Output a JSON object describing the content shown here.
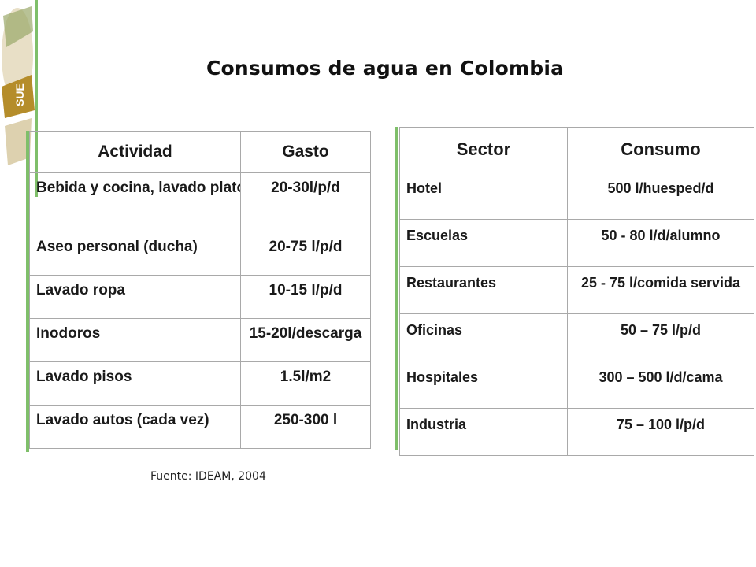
{
  "title": "Consumos de agua en Colombia",
  "logo": {
    "text": "SUE",
    "icon": "institution-logo"
  },
  "table_activity": {
    "headers": [
      "Actividad",
      "Gasto"
    ],
    "rows": [
      [
        "Bebida y cocina, lavado platos",
        "20-30l/p/d"
      ],
      [
        "Aseo personal (ducha)",
        "20-75 l/p/d"
      ],
      [
        "Lavado ropa",
        "10-15 l/p/d"
      ],
      [
        "Inodoros",
        "15-20l/descarga"
      ],
      [
        "Lavado pisos",
        "1.5l/m2"
      ],
      [
        "Lavado autos (cada vez)",
        "250-300 l"
      ]
    ]
  },
  "table_sector": {
    "headers": [
      "Sector",
      "Consumo"
    ],
    "rows": [
      [
        "Hotel",
        "500 l/huesped/d"
      ],
      [
        "Escuelas",
        "50 - 80 l/d/alumno"
      ],
      [
        "Restaurantes",
        "25 - 75 l/comida servida"
      ],
      [
        "Oficinas",
        "50 – 75 l/p/d"
      ],
      [
        "Hospitales",
        "300 – 500 l/d/cama"
      ],
      [
        "Industria",
        "75 – 100 l/p/d"
      ]
    ]
  },
  "source": "Fuente: IDEAM, 2004",
  "colors": {
    "accent_green": "#7fbf6a",
    "logo_gold": "#c9a227",
    "border": "#a9a9a9"
  }
}
